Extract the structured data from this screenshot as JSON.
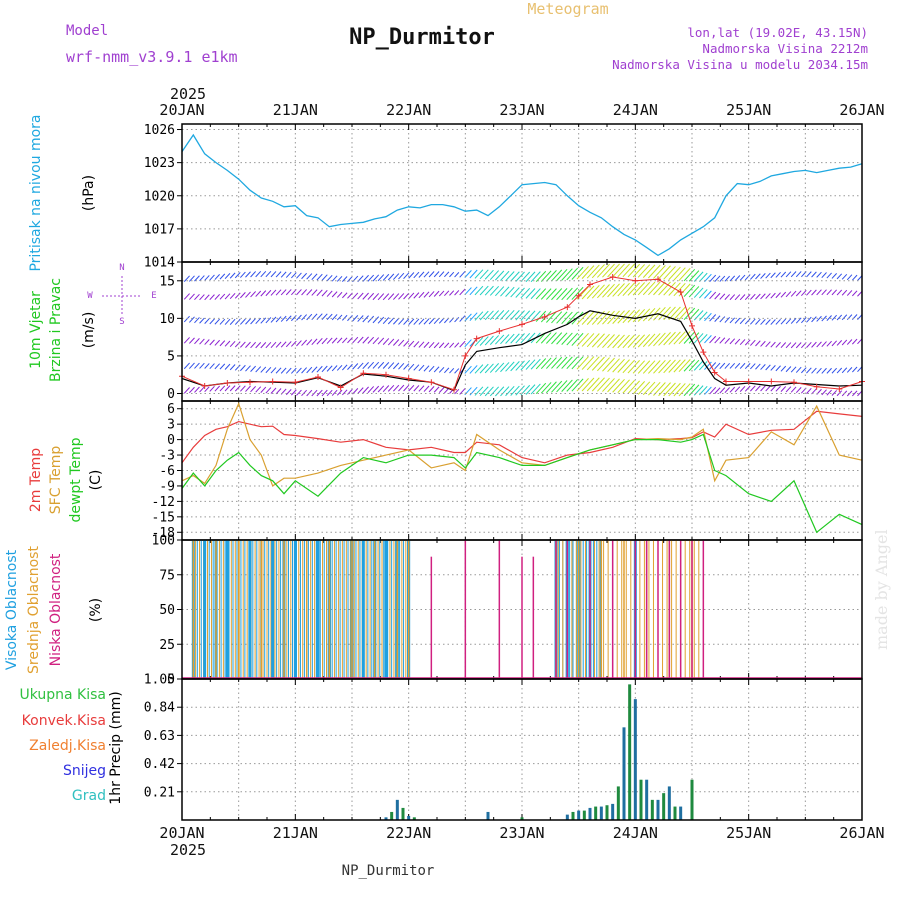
{
  "header": {
    "model_label": "Model",
    "model_name": "wrf-nmm_v3.9.1 e1km",
    "title": "NP_Durmitor",
    "subtitle": "Meteogram",
    "lonlat": "lon,lat (19.02E, 43.15N)",
    "altitude": "Nadmorska Visina 2212m",
    "model_altitude": "Nadmorska Visina u modelu 2034.15m",
    "footer": "NP_Durmitor",
    "credit": "made by Angel"
  },
  "colors": {
    "pressure": "#1fa8e0",
    "temp2m": "#e83c3c",
    "sfc": "#d9a030",
    "dew": "#20c820",
    "cloud_high": "#1fa0e0",
    "cloud_mid": "#e0a030",
    "cloud_low": "#d02080",
    "purple": "#a040d0",
    "wind_line": "#000000",
    "gust": "#e83030"
  },
  "chart_data": [
    {
      "type": "line",
      "panel": "pressure",
      "ylabel_parts": [
        "Pritisak na nivou mora",
        "(hPa)"
      ],
      "ylim": [
        1014,
        1026.5
      ],
      "yticks": [
        1014,
        1017,
        1020,
        1023,
        1026
      ],
      "x_labels": [
        "20JAN",
        "21JAN",
        "22JAN",
        "23JAN",
        "24JAN",
        "25JAN",
        "26JAN"
      ],
      "year": "2025",
      "series": [
        {
          "x": [
            0,
            0.1,
            0.2,
            0.3,
            0.4,
            0.5,
            0.6,
            0.7,
            0.8,
            0.9,
            1.0,
            1.1,
            1.2,
            1.3,
            1.4,
            1.5,
            1.6,
            1.7,
            1.8,
            1.9,
            2.0,
            2.1,
            2.2,
            2.3,
            2.4,
            2.5,
            2.6,
            2.7,
            2.8,
            2.9,
            3.0,
            3.1,
            3.2,
            3.3,
            3.4,
            3.5,
            3.6,
            3.7,
            3.8,
            3.9,
            4.0,
            4.1,
            4.2,
            4.3,
            4.4,
            4.5,
            4.6,
            4.7,
            4.8,
            4.9,
            5.0,
            5.1,
            5.2,
            5.3,
            5.4,
            5.5,
            5.6,
            5.7,
            5.8,
            5.9,
            6.0
          ],
          "values": [
            1024.0,
            1025.5,
            1023.8,
            1023.0,
            1022.3,
            1021.5,
            1020.5,
            1019.8,
            1019.5,
            1019.0,
            1019.1,
            1018.2,
            1018.0,
            1017.2,
            1017.4,
            1017.5,
            1017.6,
            1017.9,
            1018.1,
            1018.7,
            1019.0,
            1018.9,
            1019.2,
            1019.2,
            1019.0,
            1018.6,
            1018.7,
            1018.2,
            1019.0,
            1020.0,
            1021.0,
            1021.1,
            1021.2,
            1021.0,
            1020.0,
            1019.1,
            1018.5,
            1018.0,
            1017.2,
            1016.5,
            1016.0,
            1015.3,
            1014.6,
            1015.2,
            1016.0,
            1016.6,
            1017.2,
            1018.0,
            1020.0,
            1021.1,
            1021.0,
            1021.3,
            1021.8,
            1022.0,
            1022.2,
            1022.3,
            1022.1,
            1022.3,
            1022.5,
            1022.6,
            1022.9
          ]
        }
      ]
    },
    {
      "type": "line",
      "panel": "wind",
      "ylabel_parts": [
        "10m Vjetar",
        "Brzina i Pravac",
        "(m/s)"
      ],
      "compass": [
        "N",
        "W",
        "E",
        "S"
      ],
      "ylim": [
        -1,
        17.5
      ],
      "yticks": [
        0,
        5,
        10,
        15
      ],
      "series": [
        {
          "name": "speed",
          "x": [
            0,
            0.2,
            0.4,
            0.6,
            0.8,
            1.0,
            1.2,
            1.4,
            1.6,
            1.8,
            2.0,
            2.2,
            2.4,
            2.5,
            2.6,
            2.8,
            3.0,
            3.2,
            3.4,
            3.5,
            3.6,
            3.8,
            4.0,
            4.2,
            4.4,
            4.5,
            4.6,
            4.7,
            4.8,
            5.0,
            5.2,
            5.4,
            5.6,
            5.8,
            6.0
          ],
          "values": [
            2.0,
            1.0,
            1.4,
            1.6,
            1.5,
            1.4,
            2.1,
            1.0,
            2.6,
            2.3,
            1.8,
            1.5,
            0.4,
            3.8,
            5.6,
            6.1,
            6.5,
            8.0,
            9.2,
            10.2,
            11.0,
            10.4,
            10.0,
            10.6,
            9.6,
            7.0,
            4.2,
            2.0,
            1.1,
            1.4,
            1.0,
            1.4,
            1.2,
            1.0,
            1.1
          ]
        },
        {
          "name": "gust",
          "x": [
            0,
            0.2,
            0.4,
            0.6,
            0.8,
            1.0,
            1.2,
            1.4,
            1.6,
            1.8,
            2.0,
            2.2,
            2.4,
            2.5,
            2.6,
            2.8,
            3.0,
            3.2,
            3.4,
            3.5,
            3.6,
            3.8,
            4.0,
            4.2,
            4.4,
            4.5,
            4.6,
            4.7,
            4.8,
            5.0,
            5.2,
            5.4,
            5.6,
            5.8,
            6.0
          ],
          "values": [
            2.3,
            1.0,
            1.4,
            1.5,
            1.6,
            1.5,
            2.2,
            0.8,
            2.7,
            2.5,
            2.0,
            1.5,
            0.5,
            5.0,
            7.3,
            8.3,
            9.2,
            10.2,
            11.5,
            13.0,
            14.5,
            15.5,
            15.0,
            15.2,
            13.5,
            9.0,
            5.5,
            2.8,
            1.6,
            1.6,
            1.6,
            1.5,
            0.9,
            0.6,
            1.6
          ]
        }
      ]
    },
    {
      "type": "line",
      "panel": "temperature",
      "ylabel_parts": [
        "2m Temp",
        "SFC Temp",
        "dewpt Temp",
        "(C)"
      ],
      "ylim": [
        -19.5,
        7.5
      ],
      "yticks": [
        6,
        3,
        0,
        -3,
        -6,
        -9,
        -12,
        -15,
        -18
      ],
      "series": [
        {
          "name": "2m Temp",
          "x": [
            0,
            0.1,
            0.2,
            0.3,
            0.4,
            0.5,
            0.6,
            0.7,
            0.8,
            0.9,
            1.0,
            1.2,
            1.4,
            1.6,
            1.8,
            2.0,
            2.2,
            2.4,
            2.5,
            2.6,
            2.8,
            3.0,
            3.2,
            3.4,
            3.6,
            3.8,
            4.0,
            4.2,
            4.4,
            4.5,
            4.6,
            4.7,
            4.8,
            5.0,
            5.2,
            5.4,
            5.6,
            5.8,
            6.0
          ],
          "values": [
            -4.5,
            -1.5,
            0.8,
            2.0,
            2.5,
            3.5,
            3.0,
            2.5,
            2.6,
            1.0,
            0.8,
            0.2,
            -0.5,
            0.0,
            -1.5,
            -2.0,
            -1.5,
            -2.5,
            -2.5,
            -0.5,
            -1.0,
            -3.5,
            -4.5,
            -3.0,
            -2.5,
            -1.5,
            0.2,
            0.0,
            0.2,
            0.4,
            1.5,
            0.5,
            3.0,
            1.0,
            1.8,
            2.0,
            5.5,
            5.0,
            4.5
          ]
        },
        {
          "name": "SFC Temp",
          "x": [
            0,
            0.1,
            0.2,
            0.3,
            0.4,
            0.5,
            0.6,
            0.7,
            0.8,
            0.9,
            1.0,
            1.2,
            1.4,
            1.6,
            1.8,
            2.0,
            2.2,
            2.4,
            2.5,
            2.6,
            2.8,
            3.0,
            3.2,
            3.4,
            3.6,
            3.8,
            4.0,
            4.2,
            4.4,
            4.5,
            4.6,
            4.7,
            4.8,
            5.0,
            5.2,
            5.4,
            5.6,
            5.8,
            6.0
          ],
          "values": [
            -8.0,
            -7.0,
            -8.5,
            -5.0,
            2.0,
            7.0,
            0.0,
            -3.0,
            -9.0,
            -7.5,
            -7.5,
            -6.5,
            -5.0,
            -4.0,
            -3.0,
            -2.0,
            -5.5,
            -4.5,
            -6.0,
            1.0,
            -2.0,
            -4.5,
            -5.0,
            -3.5,
            -2.0,
            -1.0,
            0.0,
            0.2,
            0.0,
            0.5,
            2.0,
            -8.0,
            -4.0,
            -3.5,
            1.5,
            -1.0,
            6.5,
            -3.0,
            -4.0
          ]
        },
        {
          "name": "dewpt Temp",
          "x": [
            0,
            0.1,
            0.2,
            0.3,
            0.4,
            0.5,
            0.6,
            0.7,
            0.8,
            0.9,
            1.0,
            1.2,
            1.4,
            1.6,
            1.8,
            2.0,
            2.2,
            2.4,
            2.5,
            2.6,
            2.8,
            3.0,
            3.2,
            3.4,
            3.6,
            3.8,
            4.0,
            4.2,
            4.4,
            4.5,
            4.6,
            4.7,
            4.8,
            5.0,
            5.2,
            5.4,
            5.6,
            5.8,
            6.0
          ],
          "values": [
            -9.5,
            -6.5,
            -9.0,
            -6.0,
            -4.0,
            -2.5,
            -5.0,
            -7.0,
            -8.0,
            -10.5,
            -8.0,
            -11.0,
            -6.5,
            -3.5,
            -4.5,
            -3.0,
            -3.0,
            -3.5,
            -5.5,
            -2.5,
            -3.5,
            -5.0,
            -5.0,
            -3.5,
            -2.0,
            -1.0,
            0.0,
            0.0,
            -0.5,
            0.0,
            1.0,
            -6.0,
            -7.0,
            -10.5,
            -12.0,
            -8.0,
            -18.0,
            -14.5,
            -16.5
          ]
        }
      ]
    },
    {
      "type": "bar",
      "panel": "clouds",
      "ylabel_parts": [
        "Visoka Oblacnost",
        "Srednja Oblacnost",
        "Niska Oblacnost",
        "(%)"
      ],
      "ylim": [
        0,
        100
      ],
      "yticks": [
        0,
        25,
        50,
        75,
        100
      ],
      "series": [
        {
          "name": "Visoka Oblacnost",
          "x": [
            0.1,
            0.2,
            0.3,
            0.4,
            0.6,
            0.8,
            0.9,
            1.0,
            1.2,
            1.3,
            1.5,
            1.6,
            1.7,
            1.8,
            1.9,
            2.0,
            3.3,
            3.4,
            3.5,
            3.6,
            4.0
          ],
          "values": [
            100,
            100,
            100,
            100,
            100,
            100,
            100,
            100,
            100,
            100,
            100,
            100,
            100,
            100,
            100,
            100,
            100,
            100,
            100,
            100,
            100
          ]
        },
        {
          "name": "Srednja Oblacnost",
          "x": [
            0.1,
            0.3,
            0.5,
            0.7,
            0.9,
            1.1,
            1.3,
            1.5,
            1.7,
            1.9,
            2.0,
            3.3,
            3.5,
            3.7,
            3.9,
            4.1,
            4.3,
            4.5
          ],
          "values": [
            100,
            100,
            100,
            100,
            100,
            100,
            100,
            100,
            100,
            100,
            100,
            100,
            100,
            100,
            100,
            100,
            100,
            100
          ]
        },
        {
          "name": "Niska Oblacnost",
          "x": [
            2.2,
            2.5,
            2.8,
            3.0,
            3.1,
            3.3,
            3.4,
            3.6,
            3.8,
            4.0,
            4.1,
            4.2,
            4.3,
            4.4,
            4.5,
            4.6
          ],
          "values": [
            88,
            100,
            100,
            88,
            88,
            100,
            100,
            100,
            100,
            100,
            100,
            100,
            100,
            100,
            100,
            100
          ]
        }
      ]
    },
    {
      "type": "bar",
      "panel": "precipitation",
      "ylabel_parts": [
        "1hr Precip (mm)"
      ],
      "legend": [
        "Ukupna Kisa",
        "Konvek.Kisa",
        "Zaledj.Kisa",
        "Snijeg",
        "Grad"
      ],
      "ylim": [
        0,
        1.05
      ],
      "yticks": [
        0.21,
        0.42,
        0.63,
        0.84,
        1.05
      ],
      "series": [
        {
          "name": "Ukupna Kisa",
          "x": [
            1.8,
            1.85,
            1.9,
            1.95,
            2.0,
            2.05,
            2.7,
            3.0,
            3.4,
            3.45,
            3.5,
            3.55,
            3.6,
            3.65,
            3.7,
            3.75,
            3.8,
            3.85,
            3.9,
            3.95,
            4.0,
            4.05,
            4.1,
            4.15,
            4.2,
            4.25,
            4.3,
            4.35,
            4.4,
            4.5
          ],
          "values": [
            0.02,
            0.06,
            0.15,
            0.09,
            0.03,
            0.02,
            0.06,
            0.02,
            0.04,
            0.06,
            0.07,
            0.07,
            0.09,
            0.1,
            0.1,
            0.11,
            0.12,
            0.25,
            0.69,
            1.01,
            0.9,
            0.3,
            0.3,
            0.15,
            0.15,
            0.2,
            0.25,
            0.1,
            0.1,
            0.3
          ]
        }
      ]
    }
  ]
}
